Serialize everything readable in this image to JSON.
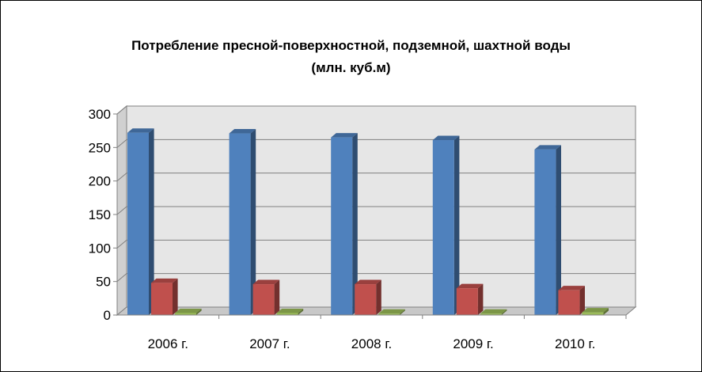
{
  "chart_data": {
    "type": "bar",
    "title": "Потребление пресной-поверхностной, подземной, шахтной воды",
    "subtitle": "(млн. куб.м)",
    "categories": [
      "2006 г.",
      "2007 г.",
      "2008 г.",
      "2009 г.",
      "2010 г."
    ],
    "series": [
      {
        "values": [
          272,
          271,
          265,
          261,
          247
        ],
        "color": "#4F81BD"
      },
      {
        "values": [
          48,
          46,
          46,
          40,
          37
        ],
        "color": "#C0504D"
      },
      {
        "values": [
          3,
          3,
          2,
          2,
          4
        ],
        "color": "#9BBB59"
      }
    ],
    "ylim": [
      0,
      300
    ],
    "yticks": [
      "0",
      "50",
      "100",
      "150",
      "200",
      "250",
      "300"
    ],
    "grid": true,
    "legend": "none",
    "style": "3d-column"
  }
}
